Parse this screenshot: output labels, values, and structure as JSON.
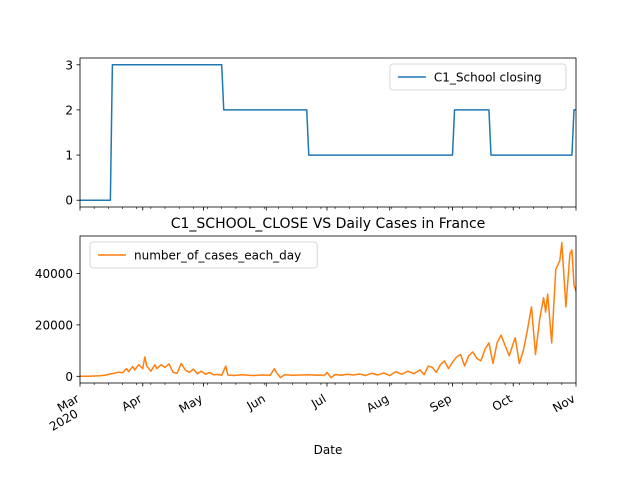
{
  "chart_data": [
    {
      "type": "line",
      "title": "",
      "xlabel": "",
      "ylabel": "",
      "x_range": [
        "2020-03-01",
        "2020-11-01"
      ],
      "ylim": [
        -0.15,
        3.15
      ],
      "yticks": [
        0,
        1,
        2,
        3
      ],
      "grid": false,
      "legend_placement": "upper right",
      "series": [
        {
          "name": "C1_School closing",
          "color": "#1f77b4",
          "step": true,
          "points": [
            [
              "2020-03-01",
              0
            ],
            [
              "2020-03-16",
              0
            ],
            [
              "2020-03-17",
              3
            ],
            [
              "2020-05-10",
              3
            ],
            [
              "2020-05-11",
              2
            ],
            [
              "2020-06-21",
              2
            ],
            [
              "2020-06-22",
              1
            ],
            [
              "2020-09-01",
              1
            ],
            [
              "2020-09-02",
              2
            ],
            [
              "2020-09-19",
              2
            ],
            [
              "2020-09-20",
              1
            ],
            [
              "2020-10-30",
              1
            ],
            [
              "2020-10-31",
              2
            ],
            [
              "2020-11-01",
              2
            ]
          ]
        }
      ]
    },
    {
      "type": "line",
      "title": "C1_SCHOOL_CLOSE VS Daily Cases in France",
      "xlabel": "Date",
      "ylabel": "",
      "x_range": [
        "2020-03-01",
        "2020-11-01"
      ],
      "x_tick_labels": [
        {
          "date": "2020-03-01",
          "label": "Mar",
          "sublabel": "2020"
        },
        {
          "date": "2020-04-01",
          "label": "Apr",
          "sublabel": ""
        },
        {
          "date": "2020-05-01",
          "label": "May",
          "sublabel": ""
        },
        {
          "date": "2020-06-01",
          "label": "Jun",
          "sublabel": ""
        },
        {
          "date": "2020-07-01",
          "label": "Jul",
          "sublabel": ""
        },
        {
          "date": "2020-08-01",
          "label": "Aug",
          "sublabel": ""
        },
        {
          "date": "2020-09-01",
          "label": "Sep",
          "sublabel": ""
        },
        {
          "date": "2020-10-01",
          "label": "Oct",
          "sublabel": ""
        },
        {
          "date": "2020-11-01",
          "label": "Nov",
          "sublabel": ""
        }
      ],
      "ylim": [
        -2600,
        54600
      ],
      "yticks": [
        0,
        20000,
        40000
      ],
      "grid": false,
      "legend_placement": "upper left",
      "series": [
        {
          "name": "number_of_cases_each_day",
          "color": "#ff7f0e",
          "points": [
            [
              "2020-03-01",
              20
            ],
            [
              "2020-03-05",
              40
            ],
            [
              "2020-03-08",
              100
            ],
            [
              "2020-03-11",
              200
            ],
            [
              "2020-03-14",
              500
            ],
            [
              "2020-03-16",
              900
            ],
            [
              "2020-03-18",
              1200
            ],
            [
              "2020-03-20",
              1600
            ],
            [
              "2020-03-22",
              1400
            ],
            [
              "2020-03-24",
              3000
            ],
            [
              "2020-03-25",
              1800
            ],
            [
              "2020-03-27",
              3800
            ],
            [
              "2020-03-28",
              2500
            ],
            [
              "2020-03-30",
              4500
            ],
            [
              "2020-04-01",
              3000
            ],
            [
              "2020-04-02",
              7500
            ],
            [
              "2020-04-03",
              4000
            ],
            [
              "2020-04-05",
              2000
            ],
            [
              "2020-04-07",
              4500
            ],
            [
              "2020-04-08",
              3000
            ],
            [
              "2020-04-10",
              4500
            ],
            [
              "2020-04-12",
              3500
            ],
            [
              "2020-04-14",
              4800
            ],
            [
              "2020-04-16",
              1500
            ],
            [
              "2020-04-18",
              1200
            ],
            [
              "2020-04-20",
              5000
            ],
            [
              "2020-04-22",
              2500
            ],
            [
              "2020-04-24",
              1500
            ],
            [
              "2020-04-26",
              2800
            ],
            [
              "2020-04-28",
              1000
            ],
            [
              "2020-04-30",
              2000
            ],
            [
              "2020-05-02",
              800
            ],
            [
              "2020-05-04",
              1500
            ],
            [
              "2020-05-06",
              600
            ],
            [
              "2020-05-08",
              700
            ],
            [
              "2020-05-10",
              400
            ],
            [
              "2020-05-12",
              4000
            ],
            [
              "2020-05-13",
              500
            ],
            [
              "2020-05-16",
              300
            ],
            [
              "2020-05-20",
              600
            ],
            [
              "2020-05-25",
              300
            ],
            [
              "2020-05-30",
              500
            ],
            [
              "2020-06-03",
              400
            ],
            [
              "2020-06-05",
              3000
            ],
            [
              "2020-06-06",
              1500
            ],
            [
              "2020-06-08",
              -500
            ],
            [
              "2020-06-10",
              600
            ],
            [
              "2020-06-14",
              400
            ],
            [
              "2020-06-18",
              500
            ],
            [
              "2020-06-22",
              600
            ],
            [
              "2020-06-26",
              400
            ],
            [
              "2020-06-30",
              500
            ],
            [
              "2020-07-01",
              1500
            ],
            [
              "2020-07-03",
              -500
            ],
            [
              "2020-07-05",
              700
            ],
            [
              "2020-07-08",
              400
            ],
            [
              "2020-07-11",
              800
            ],
            [
              "2020-07-14",
              500
            ],
            [
              "2020-07-17",
              900
            ],
            [
              "2020-07-20",
              300
            ],
            [
              "2020-07-23",
              1200
            ],
            [
              "2020-07-26",
              500
            ],
            [
              "2020-07-29",
              1300
            ],
            [
              "2020-08-01",
              300
            ],
            [
              "2020-08-04",
              1800
            ],
            [
              "2020-08-07",
              800
            ],
            [
              "2020-08-10",
              2000
            ],
            [
              "2020-08-13",
              1000
            ],
            [
              "2020-08-16",
              2500
            ],
            [
              "2020-08-18",
              600
            ],
            [
              "2020-08-20",
              4000
            ],
            [
              "2020-08-22",
              3500
            ],
            [
              "2020-08-24",
              1500
            ],
            [
              "2020-08-26",
              4500
            ],
            [
              "2020-08-28",
              6000
            ],
            [
              "2020-08-30",
              3000
            ],
            [
              "2020-09-01",
              5500
            ],
            [
              "2020-09-03",
              7500
            ],
            [
              "2020-09-05",
              8500
            ],
            [
              "2020-09-07",
              4000
            ],
            [
              "2020-09-09",
              8000
            ],
            [
              "2020-09-11",
              9500
            ],
            [
              "2020-09-13",
              7000
            ],
            [
              "2020-09-15",
              6000
            ],
            [
              "2020-09-17",
              10500
            ],
            [
              "2020-09-19",
              13000
            ],
            [
              "2020-09-21",
              5000
            ],
            [
              "2020-09-23",
              13000
            ],
            [
              "2020-09-25",
              16000
            ],
            [
              "2020-09-27",
              12000
            ],
            [
              "2020-09-29",
              8000
            ],
            [
              "2020-10-01",
              12800
            ],
            [
              "2020-10-02",
              15000
            ],
            [
              "2020-10-04",
              5000
            ],
            [
              "2020-10-06",
              10000
            ],
            [
              "2020-10-08",
              18000
            ],
            [
              "2020-10-10",
              27000
            ],
            [
              "2020-10-12",
              8500
            ],
            [
              "2020-10-14",
              22000
            ],
            [
              "2020-10-16",
              30600
            ],
            [
              "2020-10-17",
              25000
            ],
            [
              "2020-10-18",
              32000
            ],
            [
              "2020-10-20",
              13000
            ],
            [
              "2020-10-22",
              41600
            ],
            [
              "2020-10-24",
              45000
            ],
            [
              "2020-10-25",
              52000
            ],
            [
              "2020-10-27",
              27000
            ],
            [
              "2020-10-29",
              47600
            ],
            [
              "2020-10-30",
              49200
            ],
            [
              "2020-10-31",
              35600
            ],
            [
              "2020-11-01",
              33000
            ]
          ]
        }
      ]
    }
  ]
}
